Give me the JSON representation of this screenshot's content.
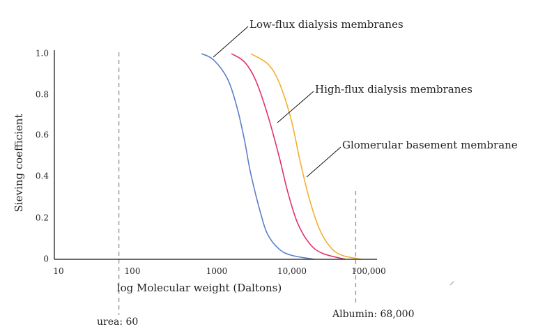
{
  "chart_data": {
    "type": "line",
    "title": "",
    "xlabel": "log Molecular weight (Daltons)",
    "ylabel": "Sieving coefficient",
    "x_scale": "log",
    "xlim": [
      10,
      100000
    ],
    "ylim": [
      0,
      1.0
    ],
    "x_ticks": [
      "10",
      "100",
      "1000",
      "10,000",
      "100,000"
    ],
    "y_ticks": [
      "0",
      "0.2",
      "0.4",
      "0.6",
      "0.8",
      "1.0"
    ],
    "grid": false,
    "legend": "none",
    "series": [
      {
        "name": "Low-flux dialysis membranes",
        "color": "#5b7fc9",
        "points": [
          [
            700,
            1.0
          ],
          [
            1000,
            0.97
          ],
          [
            1500,
            0.88
          ],
          [
            2000,
            0.74
          ],
          [
            2500,
            0.58
          ],
          [
            3000,
            0.42
          ],
          [
            4000,
            0.23
          ],
          [
            5000,
            0.12
          ],
          [
            7000,
            0.05
          ],
          [
            10000,
            0.02
          ],
          [
            20000,
            0.0
          ]
        ]
      },
      {
        "name": "High-flux dialysis membranes",
        "color": "#e0336b",
        "points": [
          [
            1700,
            1.0
          ],
          [
            2500,
            0.96
          ],
          [
            3500,
            0.87
          ],
          [
            5000,
            0.7
          ],
          [
            7000,
            0.5
          ],
          [
            9000,
            0.33
          ],
          [
            12000,
            0.18
          ],
          [
            17000,
            0.08
          ],
          [
            25000,
            0.03
          ],
          [
            50000,
            0.0
          ]
        ]
      },
      {
        "name": "Glomerular basement membrane",
        "color": "#f2b02e",
        "points": [
          [
            3000,
            1.0
          ],
          [
            5000,
            0.95
          ],
          [
            7000,
            0.86
          ],
          [
            10000,
            0.68
          ],
          [
            13000,
            0.48
          ],
          [
            17000,
            0.3
          ],
          [
            23000,
            0.15
          ],
          [
            32000,
            0.06
          ],
          [
            45000,
            0.02
          ],
          [
            80000,
            0.0
          ]
        ]
      }
    ],
    "annotations": [
      {
        "label": "Low-flux dialysis membranes",
        "series": 0
      },
      {
        "label": "High-flux dialysis membranes",
        "series": 1
      },
      {
        "label": "Glomerular basement membrane",
        "series": 2
      }
    ],
    "reference_lines": [
      {
        "label": "urea: 60",
        "x": 60
      },
      {
        "label": "Albumin: 68,000",
        "x": 68000
      }
    ]
  }
}
